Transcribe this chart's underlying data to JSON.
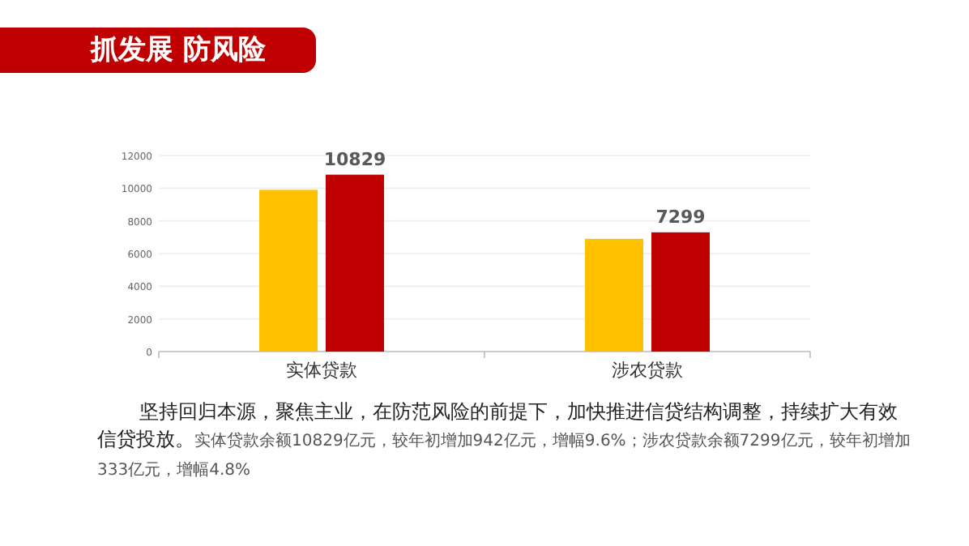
{
  "chart_data": {
    "type": "bar",
    "title": "抓发展 防风险",
    "categories": [
      "实体贷款",
      "涉农贷款"
    ],
    "series": [
      {
        "color": "#ffc000",
        "values": [
          9900,
          6900
        ],
        "value_labels": [
          null,
          null
        ]
      },
      {
        "color": "#c00000",
        "values": [
          10829,
          7299
        ],
        "value_labels": [
          "10829",
          "7299"
        ]
      }
    ],
    "ylim": [
      0,
      12000
    ],
    "yticks": [
      0,
      2000,
      4000,
      6000,
      8000,
      10000,
      12000
    ],
    "grid": "y",
    "annotations": [
      "坚持回归本源，聚焦主业，在防范风险的前提下，加快推进信贷结构调整，持续扩大有效信贷投放。",
      "实体贷款余额10829亿元，较年初增加942亿元，增幅9.6%；涉农贷款余额7299亿元，较年初增加333亿元，增幅4.8%"
    ]
  }
}
